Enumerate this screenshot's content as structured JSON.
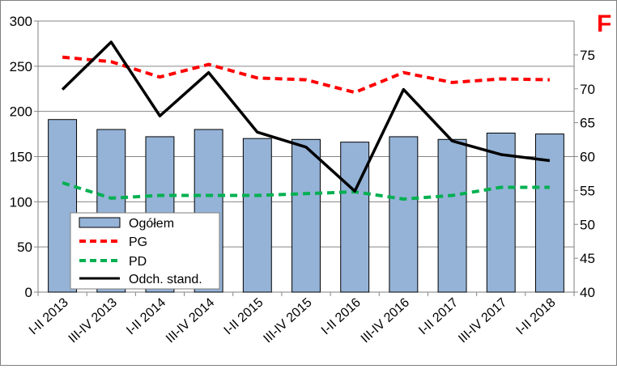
{
  "chart_data": {
    "type": "bar",
    "title": "",
    "corner_letter": "F",
    "categories": [
      "I-II 2013",
      "III-IV 2013",
      "I-II 2014",
      "III-IV 2014",
      "I-II 2015",
      "III-IV 2015",
      "I-II 2016",
      "III-IV 2016",
      "I-II 2017",
      "III-IV 2017",
      "I-II 2018"
    ],
    "ylim": [
      0,
      300
    ],
    "yticks": [
      "0",
      "50",
      "100",
      "150",
      "200",
      "250",
      "300"
    ],
    "y2lim": [
      40,
      80
    ],
    "y2ticks": [
      "40",
      "45",
      "50",
      "55",
      "60",
      "65",
      "70",
      "75"
    ],
    "series": [
      {
        "name": "Ogółem",
        "kind": "bar",
        "axis": "left",
        "color": "#95b3d7",
        "values": [
          191,
          180,
          172,
          180,
          170,
          169,
          166,
          172,
          169,
          176,
          175
        ]
      },
      {
        "name": "PG",
        "kind": "line",
        "dash": true,
        "axis": "left",
        "color": "#ff0000",
        "values": [
          260,
          255,
          238,
          252,
          237,
          235,
          221,
          243,
          232,
          236,
          235
        ]
      },
      {
        "name": "PD",
        "kind": "line",
        "dash": true,
        "axis": "left",
        "color": "#00b050",
        "values": [
          121,
          104,
          107,
          107,
          107,
          109,
          111,
          103,
          107,
          116,
          116
        ]
      },
      {
        "name": "Odch. stand.",
        "kind": "line",
        "dash": false,
        "axis": "right",
        "color": "#000000",
        "values": [
          69.9,
          76.9,
          66.0,
          72.4,
          63.6,
          61.4,
          54.9,
          69.9,
          62.3,
          60.3,
          59.4
        ]
      }
    ],
    "grid": true,
    "legend": "bottom-left"
  }
}
